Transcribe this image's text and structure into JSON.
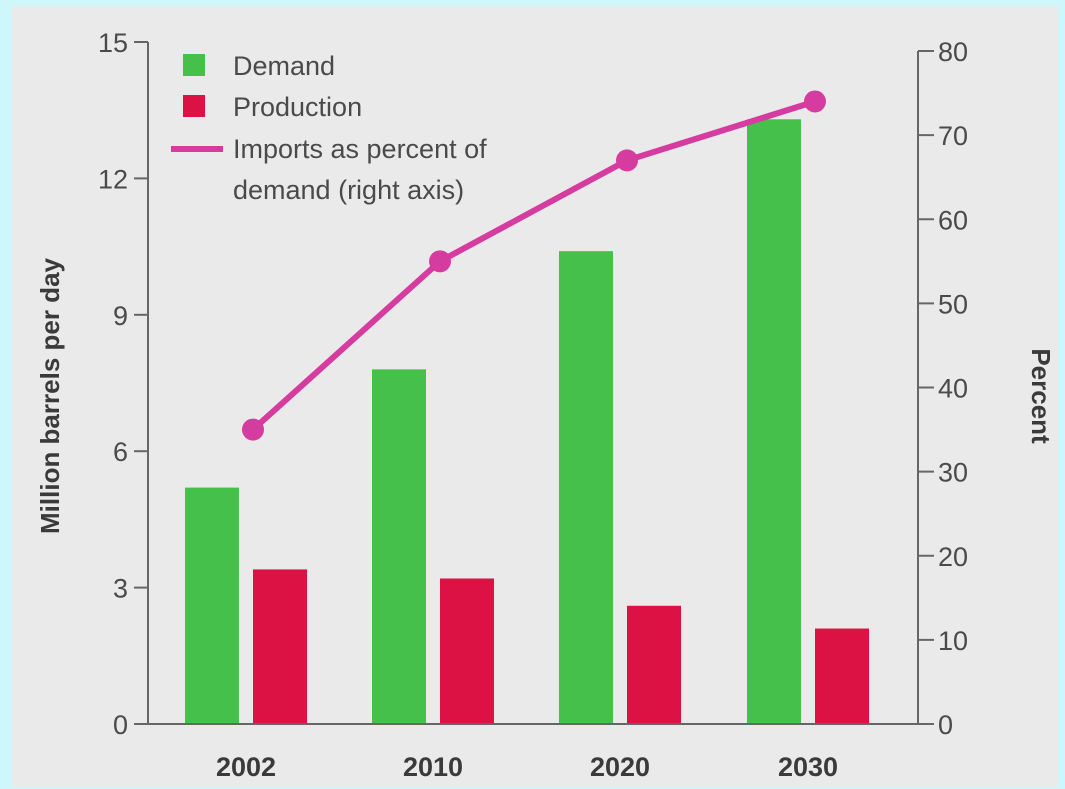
{
  "chart_data": {
    "type": "bar",
    "categories": [
      "2002",
      "2010",
      "2020",
      "2030"
    ],
    "series": [
      {
        "name": "Demand",
        "kind": "bar",
        "axis": "left",
        "color": "#45c04a",
        "values": [
          5.2,
          7.8,
          10.4,
          13.3
        ]
      },
      {
        "name": "Production",
        "kind": "bar",
        "axis": "left",
        "color": "#dc1144",
        "values": [
          3.4,
          3.2,
          2.6,
          2.1
        ]
      },
      {
        "name": "Imports as percent of demand (right axis)",
        "kind": "line",
        "axis": "right",
        "color": "#d63ba0",
        "values": [
          35,
          55,
          67,
          74
        ]
      }
    ],
    "ylabel": "Million barrels per day",
    "ylim": [
      0,
      15
    ],
    "yticks": [
      "0",
      "3",
      "6",
      "9",
      "12",
      "15"
    ],
    "y2label": "Percent",
    "y2lim": [
      0,
      80
    ],
    "y2ticks": [
      "0",
      "10",
      "20",
      "30",
      "40",
      "50",
      "60",
      "70",
      "80"
    ],
    "legend": {
      "position": "top-left",
      "items": [
        {
          "label": "Demand",
          "color": "#45c04a",
          "shape": "square"
        },
        {
          "label": "Production",
          "color": "#dc1144",
          "shape": "square"
        },
        {
          "label_lines": [
            "Imports as percent of",
            "demand (right axis)"
          ],
          "color": "#d63ba0",
          "shape": "line"
        }
      ]
    },
    "grid": false
  }
}
